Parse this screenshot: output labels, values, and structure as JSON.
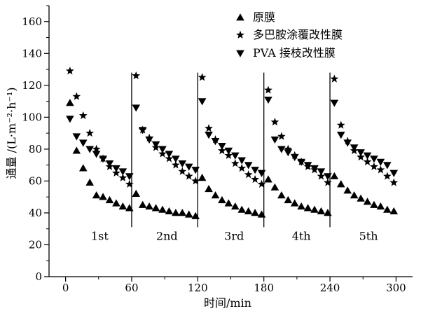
{
  "chart_data": {
    "type": "scatter",
    "xlabel": "时间/min",
    "ylabel": "通量 /(L·m⁻²·h⁻¹)",
    "xlim": [
      -15,
      315
    ],
    "ylim": [
      0,
      170
    ],
    "x_ticks": [
      0,
      60,
      120,
      180,
      240,
      300
    ],
    "y_ticks": [
      0,
      20,
      40,
      60,
      80,
      100,
      120,
      140,
      160
    ],
    "grid": false,
    "legend_position": "top-right",
    "cycle_boundaries": [
      60,
      120,
      180,
      240
    ],
    "cycle_labels": [
      {
        "text": "1st",
        "x": 31
      },
      {
        "text": "2nd",
        "x": 92
      },
      {
        "text": "3rd",
        "x": 153
      },
      {
        "text": "4th",
        "x": 214
      },
      {
        "text": "5th",
        "x": 275
      }
    ],
    "series": [
      {
        "name": "原膜",
        "marker": "triangle-up",
        "points": [
          [
            4,
            109
          ],
          [
            10,
            79
          ],
          [
            16,
            68
          ],
          [
            22,
            59
          ],
          [
            28,
            51
          ],
          [
            34,
            50
          ],
          [
            40,
            48
          ],
          [
            46,
            46
          ],
          [
            52,
            44
          ],
          [
            58,
            43
          ],
          [
            64,
            52
          ],
          [
            70,
            45
          ],
          [
            76,
            44
          ],
          [
            82,
            43
          ],
          [
            88,
            42
          ],
          [
            94,
            41
          ],
          [
            100,
            40
          ],
          [
            106,
            40
          ],
          [
            112,
            39
          ],
          [
            118,
            38
          ],
          [
            124,
            62
          ],
          [
            130,
            55
          ],
          [
            136,
            51
          ],
          [
            142,
            48
          ],
          [
            148,
            46
          ],
          [
            154,
            44
          ],
          [
            160,
            42
          ],
          [
            166,
            41
          ],
          [
            172,
            40
          ],
          [
            178,
            39
          ],
          [
            184,
            61
          ],
          [
            190,
            56
          ],
          [
            196,
            51
          ],
          [
            202,
            48
          ],
          [
            208,
            46
          ],
          [
            214,
            44
          ],
          [
            220,
            43
          ],
          [
            226,
            42
          ],
          [
            232,
            41
          ],
          [
            238,
            40
          ],
          [
            244,
            63
          ],
          [
            250,
            58
          ],
          [
            256,
            54
          ],
          [
            262,
            51
          ],
          [
            268,
            49
          ],
          [
            274,
            47
          ],
          [
            280,
            45
          ],
          [
            286,
            44
          ],
          [
            292,
            42
          ],
          [
            298,
            41
          ]
        ]
      },
      {
        "name": "多巴胺涂覆改性膜",
        "marker": "star",
        "points": [
          [
            4,
            129
          ],
          [
            10,
            113
          ],
          [
            16,
            101
          ],
          [
            22,
            90
          ],
          [
            28,
            80
          ],
          [
            34,
            74
          ],
          [
            40,
            69
          ],
          [
            46,
            65
          ],
          [
            52,
            62
          ],
          [
            58,
            58
          ],
          [
            64,
            126
          ],
          [
            70,
            92
          ],
          [
            76,
            87
          ],
          [
            82,
            81
          ],
          [
            88,
            77
          ],
          [
            94,
            74
          ],
          [
            100,
            70
          ],
          [
            106,
            66
          ],
          [
            112,
            63
          ],
          [
            118,
            60
          ],
          [
            124,
            125
          ],
          [
            130,
            93
          ],
          [
            136,
            86
          ],
          [
            142,
            79
          ],
          [
            148,
            76
          ],
          [
            154,
            71
          ],
          [
            160,
            68
          ],
          [
            166,
            64
          ],
          [
            172,
            61
          ],
          [
            178,
            58
          ],
          [
            184,
            117
          ],
          [
            190,
            97
          ],
          [
            196,
            88
          ],
          [
            202,
            80
          ],
          [
            208,
            76
          ],
          [
            214,
            72
          ],
          [
            220,
            69
          ],
          [
            226,
            67
          ],
          [
            232,
            63
          ],
          [
            238,
            59
          ],
          [
            244,
            124
          ],
          [
            250,
            95
          ],
          [
            256,
            85
          ],
          [
            262,
            79
          ],
          [
            268,
            75
          ],
          [
            274,
            72
          ],
          [
            280,
            69
          ],
          [
            286,
            67
          ],
          [
            292,
            63
          ],
          [
            298,
            59
          ]
        ]
      },
      {
        "name": "PVA 接枝改性膜",
        "marker": "triangle-down",
        "points": [
          [
            4,
            99
          ],
          [
            10,
            88
          ],
          [
            16,
            84
          ],
          [
            22,
            80
          ],
          [
            28,
            77
          ],
          [
            34,
            74
          ],
          [
            40,
            71
          ],
          [
            46,
            68
          ],
          [
            52,
            66
          ],
          [
            58,
            63
          ],
          [
            64,
            106
          ],
          [
            70,
            92
          ],
          [
            76,
            86
          ],
          [
            82,
            83
          ],
          [
            88,
            80
          ],
          [
            94,
            77
          ],
          [
            100,
            74
          ],
          [
            106,
            71
          ],
          [
            112,
            69
          ],
          [
            118,
            67
          ],
          [
            124,
            110
          ],
          [
            130,
            89
          ],
          [
            136,
            85
          ],
          [
            142,
            82
          ],
          [
            148,
            79
          ],
          [
            154,
            76
          ],
          [
            160,
            73
          ],
          [
            166,
            70
          ],
          [
            172,
            67
          ],
          [
            178,
            65
          ],
          [
            184,
            111
          ],
          [
            190,
            86
          ],
          [
            196,
            80
          ],
          [
            202,
            78
          ],
          [
            208,
            75
          ],
          [
            214,
            72
          ],
          [
            220,
            70
          ],
          [
            226,
            68
          ],
          [
            232,
            66
          ],
          [
            238,
            63
          ],
          [
            244,
            109
          ],
          [
            250,
            89
          ],
          [
            256,
            84
          ],
          [
            262,
            81
          ],
          [
            268,
            78
          ],
          [
            274,
            76
          ],
          [
            280,
            74
          ],
          [
            286,
            72
          ],
          [
            292,
            70
          ],
          [
            298,
            65
          ]
        ]
      }
    ]
  }
}
